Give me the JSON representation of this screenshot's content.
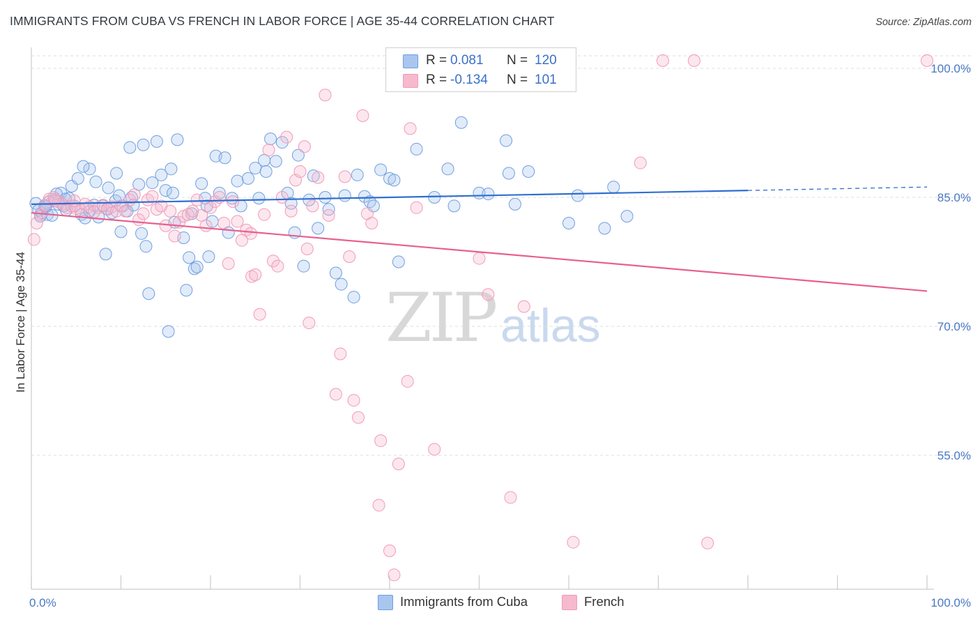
{
  "title": "IMMIGRANTS FROM CUBA VS FRENCH IN LABOR FORCE | AGE 35-44 CORRELATION CHART",
  "source": "Source: ZipAtlas.com",
  "watermark": {
    "zip": "ZIP",
    "atlas": "atlas"
  },
  "legend": {
    "r_label": "R =",
    "n_label": "N =",
    "rows": [
      {
        "r": "0.081",
        "n": "120",
        "color": "#a9c6ef"
      },
      {
        "r": "-0.134",
        "n": "101",
        "color": "#f6b9cd"
      }
    ]
  },
  "bottom_legend": [
    {
      "label": "Immigrants from Cuba",
      "color": "#a9c6ef"
    },
    {
      "label": "French",
      "color": "#f6b9cd"
    }
  ],
  "chart_data": {
    "type": "scatter",
    "title": "IMMIGRANTS FROM CUBA VS FRENCH IN LABOR FORCE | AGE 35-44 CORRELATION CHART",
    "xlabel": "",
    "ylabel": "In Labor Force | Age 35-44",
    "xlim": [
      0,
      100
    ],
    "ylim": [
      40,
      102
    ],
    "x_tick_labels": [
      "0.0%",
      "100.0%"
    ],
    "y_ticks": [
      100,
      85,
      70,
      55
    ],
    "y_tick_labels": [
      "100.0%",
      "85.0%",
      "70.0%",
      "55.0%"
    ],
    "grid": "horizontal dashed",
    "legend_position": "top-center",
    "series": [
      {
        "name": "Immigrants from Cuba",
        "color": "#6f9fe0",
        "trend": {
          "x0": 0,
          "y0": 84.2,
          "x1": 80,
          "y1": 85.8,
          "dash_to_x": 100,
          "dash_to_y": 86.2,
          "color": "#2f6fcf"
        },
        "points": [
          [
            0.5,
            84.3
          ],
          [
            0.8,
            83.5
          ],
          [
            1.0,
            82.8
          ],
          [
            1.2,
            83.2
          ],
          [
            1.5,
            84.0
          ],
          [
            1.8,
            83.0
          ],
          [
            2.0,
            84.5
          ],
          [
            2.3,
            82.9
          ],
          [
            2.6,
            84.8
          ],
          [
            3.0,
            84.2
          ],
          [
            3.3,
            85.5
          ],
          [
            3.6,
            84.0
          ],
          [
            3.9,
            83.5
          ],
          [
            4.2,
            84.9
          ],
          [
            4.5,
            86.3
          ],
          [
            4.8,
            84.0
          ],
          [
            5.2,
            87.2
          ],
          [
            5.6,
            83.0
          ],
          [
            6.0,
            82.6
          ],
          [
            6.5,
            83.4
          ],
          [
            7.0,
            84.1
          ],
          [
            7.5,
            82.7
          ],
          [
            8.0,
            84.0
          ],
          [
            8.5,
            83.7
          ],
          [
            9.0,
            83.2
          ],
          [
            9.4,
            84.6
          ],
          [
            9.8,
            85.2
          ],
          [
            10.2,
            84.0
          ],
          [
            10.7,
            83.4
          ],
          [
            11.2,
            85.0
          ],
          [
            6.5,
            88.3
          ],
          [
            7.2,
            86.8
          ],
          [
            8.3,
            78.4
          ],
          [
            8.6,
            86.1
          ],
          [
            9.5,
            87.8
          ],
          [
            10.0,
            81.0
          ],
          [
            11.0,
            90.8
          ],
          [
            11.4,
            84.1
          ],
          [
            12.0,
            86.5
          ],
          [
            12.5,
            91.1
          ],
          [
            12.8,
            79.3
          ],
          [
            13.1,
            73.8
          ],
          [
            13.5,
            86.7
          ],
          [
            14.0,
            91.5
          ],
          [
            14.5,
            87.6
          ],
          [
            15.0,
            85.8
          ],
          [
            15.3,
            69.4
          ],
          [
            15.6,
            88.3
          ],
          [
            16.0,
            82.1
          ],
          [
            16.3,
            91.7
          ],
          [
            17.0,
            80.3
          ],
          [
            17.3,
            74.2
          ],
          [
            17.6,
            78.0
          ],
          [
            17.9,
            83.1
          ],
          [
            18.2,
            76.7
          ],
          [
            18.5,
            76.9
          ],
          [
            19.0,
            86.6
          ],
          [
            19.4,
            84.9
          ],
          [
            19.8,
            78.1
          ],
          [
            20.2,
            82.2
          ],
          [
            20.6,
            89.8
          ],
          [
            21.0,
            85.5
          ],
          [
            21.6,
            89.6
          ],
          [
            22.0,
            80.9
          ],
          [
            22.4,
            84.9
          ],
          [
            23.0,
            86.9
          ],
          [
            23.4,
            84.0
          ],
          [
            24.2,
            87.2
          ],
          [
            25.0,
            88.4
          ],
          [
            25.4,
            84.9
          ],
          [
            26.0,
            89.3
          ],
          [
            26.7,
            91.8
          ],
          [
            27.3,
            89.2
          ],
          [
            28.0,
            91.4
          ],
          [
            28.6,
            85.5
          ],
          [
            29.0,
            84.3
          ],
          [
            29.4,
            80.9
          ],
          [
            29.8,
            89.9
          ],
          [
            30.4,
            77.0
          ],
          [
            31.5,
            87.5
          ],
          [
            32.0,
            81.4
          ],
          [
            32.8,
            85.0
          ],
          [
            33.2,
            83.6
          ],
          [
            34.0,
            76.2
          ],
          [
            34.6,
            74.9
          ],
          [
            35.0,
            85.2
          ],
          [
            36.0,
            73.4
          ],
          [
            36.4,
            87.6
          ],
          [
            37.2,
            85.1
          ],
          [
            37.8,
            84.5
          ],
          [
            38.2,
            84.0
          ],
          [
            39.0,
            88.2
          ],
          [
            40.0,
            87.2
          ],
          [
            40.5,
            87.0
          ],
          [
            41.0,
            77.5
          ],
          [
            43.0,
            90.6
          ],
          [
            45.0,
            85.0
          ],
          [
            46.5,
            88.3
          ],
          [
            47.2,
            84.0
          ],
          [
            48.0,
            93.7
          ],
          [
            50.0,
            85.5
          ],
          [
            51.0,
            85.4
          ],
          [
            53.0,
            91.6
          ],
          [
            53.3,
            87.8
          ],
          [
            54.0,
            84.2
          ],
          [
            55.5,
            88.0
          ],
          [
            60.0,
            82.0
          ],
          [
            61.0,
            85.2
          ],
          [
            64.0,
            81.4
          ],
          [
            65.0,
            86.2
          ],
          [
            66.5,
            82.8
          ],
          [
            5.8,
            88.6
          ],
          [
            3.8,
            84.8
          ],
          [
            2.8,
            85.4
          ],
          [
            1.6,
            83.9
          ],
          [
            12.3,
            80.8
          ],
          [
            15.8,
            85.5
          ],
          [
            19.6,
            84.0
          ],
          [
            26.2,
            88.0
          ],
          [
            31.0,
            84.7
          ]
        ]
      },
      {
        "name": "French",
        "color": "#f29ab8",
        "trend": {
          "x0": 0,
          "y0": 83.2,
          "x1": 100,
          "y1": 74.1,
          "color": "#e8608f"
        },
        "points": [
          [
            0.3,
            80.1
          ],
          [
            0.6,
            82.0
          ],
          [
            1.0,
            83.0
          ],
          [
            1.5,
            84.1
          ],
          [
            2.0,
            84.8
          ],
          [
            2.5,
            85.0
          ],
          [
            3.0,
            84.5
          ],
          [
            3.5,
            84.2
          ],
          [
            4.0,
            83.8
          ],
          [
            4.5,
            84.0
          ],
          [
            5.0,
            83.7
          ],
          [
            5.5,
            83.5
          ],
          [
            6.0,
            84.2
          ],
          [
            6.5,
            83.9
          ],
          [
            7.0,
            83.3
          ],
          [
            7.5,
            83.8
          ],
          [
            8.0,
            84.1
          ],
          [
            8.5,
            83.6
          ],
          [
            9.0,
            83.9
          ],
          [
            9.5,
            83.4
          ],
          [
            10.0,
            84.0
          ],
          [
            10.5,
            83.4
          ],
          [
            11.0,
            84.7
          ],
          [
            11.5,
            85.3
          ],
          [
            12.0,
            82.4
          ],
          [
            12.5,
            83.1
          ],
          [
            13.0,
            84.7
          ],
          [
            13.5,
            85.1
          ],
          [
            14.0,
            83.6
          ],
          [
            14.5,
            84.0
          ],
          [
            15.0,
            81.7
          ],
          [
            15.5,
            83.4
          ],
          [
            16.0,
            80.5
          ],
          [
            16.5,
            82.1
          ],
          [
            17.0,
            82.8
          ],
          [
            17.5,
            83.0
          ],
          [
            18.0,
            83.4
          ],
          [
            18.5,
            84.7
          ],
          [
            19.0,
            82.9
          ],
          [
            19.5,
            81.7
          ],
          [
            20.0,
            83.8
          ],
          [
            20.5,
            84.5
          ],
          [
            21.0,
            85.0
          ],
          [
            21.5,
            82.0
          ],
          [
            22.0,
            77.3
          ],
          [
            22.5,
            84.5
          ],
          [
            23.0,
            82.2
          ],
          [
            23.5,
            80.0
          ],
          [
            24.0,
            81.2
          ],
          [
            24.5,
            80.8
          ],
          [
            24.6,
            75.8
          ],
          [
            25.0,
            76.0
          ],
          [
            25.5,
            71.4
          ],
          [
            26.0,
            83.0
          ],
          [
            26.5,
            90.5
          ],
          [
            27.0,
            77.6
          ],
          [
            27.5,
            77.0
          ],
          [
            28.0,
            85.0
          ],
          [
            28.5,
            92.0
          ],
          [
            29.0,
            83.4
          ],
          [
            29.5,
            87.0
          ],
          [
            30.0,
            88.0
          ],
          [
            30.5,
            90.9
          ],
          [
            30.8,
            79.0
          ],
          [
            31.0,
            70.4
          ],
          [
            31.4,
            84.0
          ],
          [
            32.0,
            87.3
          ],
          [
            32.8,
            96.9
          ],
          [
            33.2,
            82.9
          ],
          [
            34.5,
            66.8
          ],
          [
            34.0,
            62.1
          ],
          [
            35.0,
            87.4
          ],
          [
            35.5,
            78.1
          ],
          [
            36.0,
            61.4
          ],
          [
            36.5,
            59.4
          ],
          [
            37.0,
            94.5
          ],
          [
            37.5,
            83.1
          ],
          [
            38.0,
            82.0
          ],
          [
            38.8,
            49.2
          ],
          [
            39.0,
            56.7
          ],
          [
            40.0,
            43.9
          ],
          [
            40.5,
            41.1
          ],
          [
            41.0,
            54.0
          ],
          [
            42.0,
            63.6
          ],
          [
            42.3,
            93.0
          ],
          [
            43.0,
            83.8
          ],
          [
            45.0,
            55.7
          ],
          [
            46.5,
            101.0
          ],
          [
            50.0,
            77.9
          ],
          [
            51.0,
            73.7
          ],
          [
            53.5,
            50.1
          ],
          [
            55.0,
            72.3
          ],
          [
            60.5,
            44.9
          ],
          [
            68.0,
            89.0
          ],
          [
            70.5,
            100.9
          ],
          [
            74.0,
            100.9
          ],
          [
            75.5,
            44.8
          ],
          [
            100.0,
            100.9
          ],
          [
            41.5,
            101.0
          ],
          [
            2.7,
            84.6
          ],
          [
            4.8,
            84.6
          ]
        ]
      }
    ]
  }
}
